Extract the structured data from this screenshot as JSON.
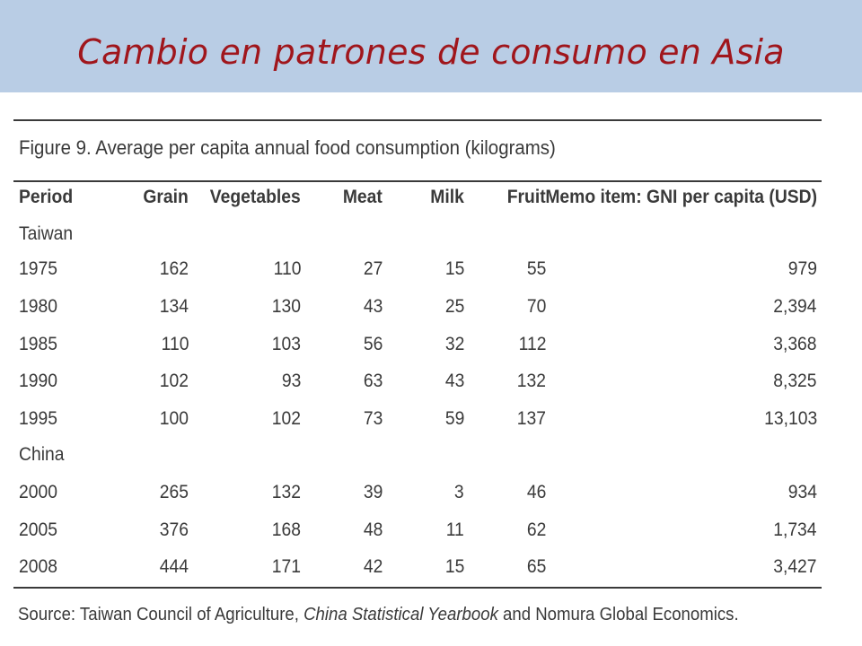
{
  "slide": {
    "title": "Cambio en patrones de consumo en Asia"
  },
  "figure": {
    "title": "Figure 9. Average per capita annual food consumption (kilograms)",
    "headers": [
      "Period",
      "Grain",
      "Vegetables",
      "Meat",
      "Milk",
      "Fruit",
      "Memo item: GNI per capita (USD)"
    ],
    "groups": [
      {
        "name": "Taiwan",
        "rows": [
          [
            "1975",
            "162",
            "110",
            "27",
            "15",
            "55",
            "979"
          ],
          [
            "1980",
            "134",
            "130",
            "43",
            "25",
            "70",
            "2,394"
          ],
          [
            "1985",
            "110",
            "103",
            "56",
            "32",
            "112",
            "3,368"
          ],
          [
            "1990",
            "102",
            "93",
            "63",
            "43",
            "132",
            "8,325"
          ],
          [
            "1995",
            "100",
            "102",
            "73",
            "59",
            "137",
            "13,103"
          ]
        ]
      },
      {
        "name": "China",
        "rows": [
          [
            "2000",
            "265",
            "132",
            "39",
            "3",
            "46",
            "934"
          ],
          [
            "2005",
            "376",
            "168",
            "48",
            "11",
            "62",
            "1,734"
          ],
          [
            "2008",
            "444",
            "171",
            "42",
            "15",
            "65",
            "3,427"
          ]
        ]
      }
    ],
    "source": {
      "prefix": "Source: Taiwan Council of Agriculture, ",
      "italic": "China Statistical Yearbook",
      "suffix": " and Nomura Global Economics."
    }
  }
}
